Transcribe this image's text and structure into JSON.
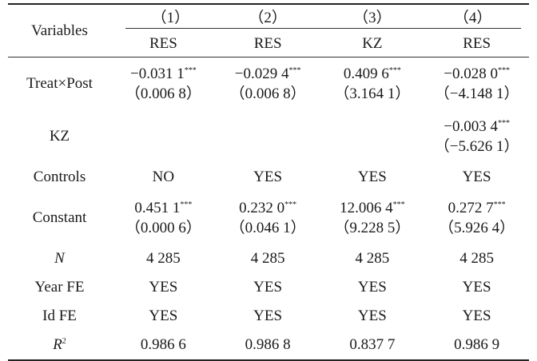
{
  "header": {
    "variables_label": "Variables",
    "col_numbers": [
      "（1）",
      "（2）",
      "（3）",
      "（4）"
    ],
    "dep_vars": [
      "RES",
      "RES",
      "KZ",
      "RES"
    ]
  },
  "rows": {
    "treat_post": {
      "label": "Treat×Post",
      "coef": [
        "−0.031 1",
        "−0.029 4",
        "0.409 6",
        "−0.028 0"
      ],
      "stars": [
        "***",
        "***",
        "***",
        "***"
      ],
      "se": [
        "（0.006 8）",
        "（0.006 8）",
        "（3.164 1）",
        "（−4.148 1）"
      ]
    },
    "kz": {
      "label": "KZ",
      "coef": [
        "",
        "",
        "",
        "−0.003 4"
      ],
      "stars": [
        "",
        "",
        "",
        "***"
      ],
      "se": [
        "",
        "",
        "",
        "（−5.626 1）"
      ]
    },
    "controls": {
      "label": "Controls",
      "values": [
        "NO",
        "YES",
        "YES",
        "YES"
      ]
    },
    "constant": {
      "label": "Constant",
      "coef": [
        "0.451 1",
        "0.232 0",
        "12.006 4",
        "0.272 7"
      ],
      "stars": [
        "***",
        "***",
        "***",
        "***"
      ],
      "se": [
        "（0.000 6）",
        "（0.046 1）",
        "（9.228 5）",
        "（5.926 4）"
      ]
    },
    "n": {
      "label": "N",
      "values": [
        "4 285",
        "4 285",
        "4 285",
        "4 285"
      ]
    },
    "year_fe": {
      "label": "Year FE",
      "values": [
        "YES",
        "YES",
        "YES",
        "YES"
      ]
    },
    "id_fe": {
      "label": "Id FE",
      "values": [
        "YES",
        "YES",
        "YES",
        "YES"
      ]
    },
    "r2": {
      "label": "R",
      "label_sup": "2",
      "values": [
        "0.986 6",
        "0.986 8",
        "0.837 7",
        "0.986 9"
      ]
    }
  }
}
